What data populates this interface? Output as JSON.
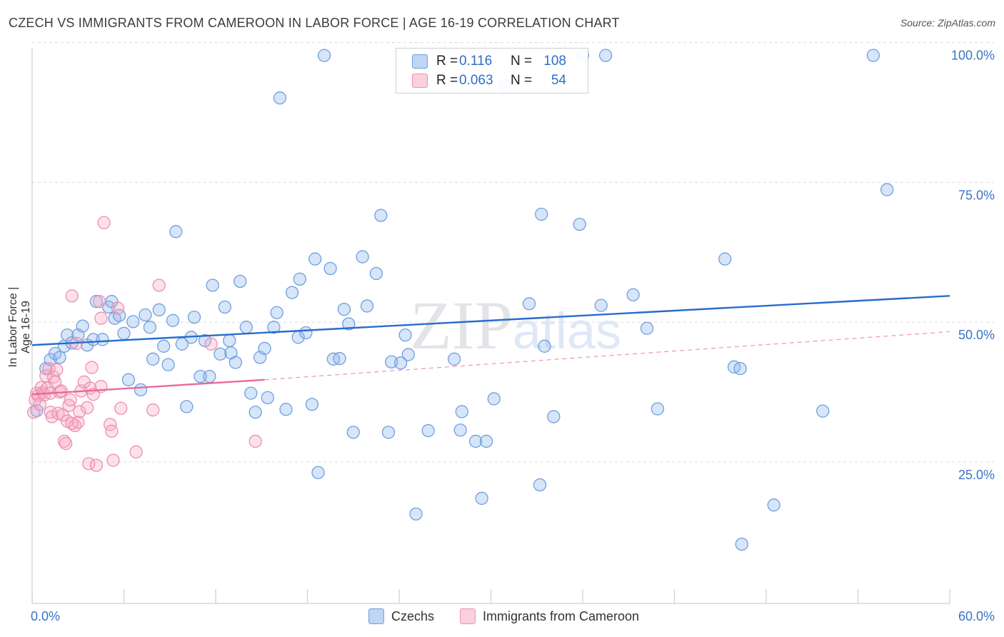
{
  "title": "CZECH VS IMMIGRANTS FROM CAMEROON IN LABOR FORCE | AGE 16-19 CORRELATION CHART",
  "source": "Source: ZipAtlas.com",
  "colors": {
    "blue": "#6f9fe0",
    "blue_fill": "rgba(140,180,235,0.35)",
    "blue_line": "#2a6ccc",
    "pink": "#ee8faf",
    "pink_fill": "rgba(245,170,195,0.35)",
    "pink_line": "#e8699a",
    "grid": "#dcdcdc",
    "axis_text": "#3a74c4"
  },
  "legend": {
    "rows": [
      {
        "swatch": "blue",
        "r_label": "R =",
        "r_value": "0.116",
        "n_label": "N =",
        "n_value": "108"
      },
      {
        "swatch": "pink",
        "r_label": "R =",
        "r_value": "0.063",
        "n_label": "N =",
        "n_value": "54"
      }
    ]
  },
  "bottom_legend": [
    "Czechs",
    "Immigrants from Cameroon"
  ],
  "watermark": "ZIPatlas",
  "chart_data": {
    "type": "scatter",
    "xlabel": "",
    "ylabel": "In Labor Force | Age 16-19",
    "xlim": [
      0,
      60
    ],
    "ylim": [
      2,
      102
    ],
    "x_tick_labels": {
      "left": "0.0%",
      "right": "60.0%"
    },
    "y_ticks": [
      {
        "value": 100,
        "label": "100.0%"
      },
      {
        "value": 75,
        "label": "75.0%"
      },
      {
        "value": 50,
        "label": "50.0%"
      },
      {
        "value": 25,
        "label": "25.0%"
      }
    ],
    "grid": true,
    "series": [
      {
        "name": "Czechs",
        "color_key": "blue",
        "trend": {
          "x0": 0,
          "y0": 48.2,
          "x1": 60,
          "y1": 57.0,
          "style": "solid"
        },
        "points": [
          [
            0.3,
            36.5
          ],
          [
            0.9,
            44.0
          ],
          [
            1.2,
            45.6
          ],
          [
            1.5,
            46.7
          ],
          [
            1.8,
            46.0
          ],
          [
            2.1,
            48.0
          ],
          [
            2.3,
            50.0
          ],
          [
            2.6,
            48.6
          ],
          [
            3.0,
            50.0
          ],
          [
            3.3,
            51.6
          ],
          [
            3.6,
            48.2
          ],
          [
            4.0,
            49.2
          ],
          [
            4.6,
            49.2
          ],
          [
            4.2,
            56.0
          ],
          [
            5.0,
            55.0
          ],
          [
            5.2,
            56.0
          ],
          [
            5.4,
            53.0
          ],
          [
            5.7,
            53.5
          ],
          [
            6.0,
            50.3
          ],
          [
            6.3,
            42.0
          ],
          [
            6.6,
            52.4
          ],
          [
            7.1,
            40.2
          ],
          [
            7.4,
            53.6
          ],
          [
            7.7,
            51.4
          ],
          [
            7.9,
            45.7
          ],
          [
            8.3,
            54.5
          ],
          [
            8.6,
            48.0
          ],
          [
            8.9,
            44.7
          ],
          [
            9.2,
            52.6
          ],
          [
            9.4,
            68.5
          ],
          [
            9.8,
            48.4
          ],
          [
            10.1,
            37.2
          ],
          [
            10.4,
            49.6
          ],
          [
            10.6,
            53.2
          ],
          [
            11.0,
            42.6
          ],
          [
            11.3,
            49.0
          ],
          [
            11.6,
            42.6
          ],
          [
            11.8,
            58.9
          ],
          [
            12.3,
            46.6
          ],
          [
            12.6,
            55.0
          ],
          [
            12.9,
            49.0
          ],
          [
            13.3,
            45.1
          ],
          [
            13.6,
            59.6
          ],
          [
            14.0,
            51.4
          ],
          [
            14.3,
            39.6
          ],
          [
            14.6,
            36.2
          ],
          [
            14.9,
            46.0
          ],
          [
            15.2,
            47.6
          ],
          [
            15.4,
            38.8
          ],
          [
            15.8,
            51.4
          ],
          [
            16.0,
            54.0
          ],
          [
            16.2,
            92.4
          ],
          [
            16.6,
            36.7
          ],
          [
            17.0,
            57.6
          ],
          [
            17.4,
            49.6
          ],
          [
            17.5,
            60.0
          ],
          [
            17.9,
            50.4
          ],
          [
            18.3,
            37.6
          ],
          [
            18.5,
            63.6
          ],
          [
            18.7,
            25.4
          ],
          [
            19.1,
            100.0
          ],
          [
            19.5,
            61.9
          ],
          [
            19.7,
            45.7
          ],
          [
            20.1,
            45.8
          ],
          [
            20.4,
            54.6
          ],
          [
            20.7,
            52.0
          ],
          [
            21.0,
            32.6
          ],
          [
            21.6,
            64.0
          ],
          [
            21.9,
            55.2
          ],
          [
            22.5,
            61.0
          ],
          [
            22.8,
            71.4
          ],
          [
            23.3,
            32.6
          ],
          [
            23.5,
            45.2
          ],
          [
            24.4,
            50.0
          ],
          [
            24.6,
            46.5
          ],
          [
            25.1,
            18.0
          ],
          [
            25.9,
            32.9
          ],
          [
            27.6,
            45.7
          ],
          [
            28.0,
            33.0
          ],
          [
            28.1,
            36.3
          ],
          [
            29.1,
            100.0
          ],
          [
            29.0,
            31.0
          ],
          [
            29.4,
            20.8
          ],
          [
            29.7,
            31.0
          ],
          [
            30.2,
            38.6
          ],
          [
            30.9,
            94.6
          ],
          [
            32.5,
            55.6
          ],
          [
            33.2,
            23.2
          ],
          [
            33.3,
            71.6
          ],
          [
            33.5,
            48.0
          ],
          [
            34.1,
            35.4
          ],
          [
            36.0,
            100.0
          ],
          [
            35.8,
            69.8
          ],
          [
            37.2,
            55.3
          ],
          [
            37.5,
            100.0
          ],
          [
            39.3,
            57.2
          ],
          [
            40.2,
            51.2
          ],
          [
            40.9,
            36.8
          ],
          [
            45.3,
            63.6
          ],
          [
            45.9,
            44.3
          ],
          [
            46.3,
            44.0
          ],
          [
            46.4,
            12.6
          ],
          [
            48.5,
            19.6
          ],
          [
            51.7,
            36.4
          ],
          [
            55.0,
            100.0
          ],
          [
            55.9,
            76.0
          ],
          [
            24.1,
            45.0
          ],
          [
            13.0,
            46.8
          ]
        ]
      },
      {
        "name": "Immigrants from Cameroon",
        "color_key": "pink",
        "trend": {
          "x0": 0,
          "y0": 39.4,
          "x1": 15.2,
          "y1": 42.0,
          "style": "solid",
          "dashed_to": {
            "x": 60,
            "y": 50.6
          }
        },
        "points": [
          [
            0.1,
            36.2
          ],
          [
            0.2,
            38.4
          ],
          [
            0.3,
            39.6
          ],
          [
            0.4,
            39.2
          ],
          [
            0.5,
            37.6
          ],
          [
            0.6,
            40.6
          ],
          [
            0.7,
            39.7
          ],
          [
            0.8,
            39.3
          ],
          [
            0.9,
            42.7
          ],
          [
            1.0,
            40.5
          ],
          [
            1.1,
            44.0
          ],
          [
            1.2,
            36.2
          ],
          [
            1.2,
            39.6
          ],
          [
            1.3,
            35.4
          ],
          [
            1.4,
            42.5
          ],
          [
            1.5,
            41.6
          ],
          [
            1.6,
            43.8
          ],
          [
            1.7,
            36.0
          ],
          [
            1.8,
            39.8
          ],
          [
            1.9,
            40.0
          ],
          [
            2.0,
            35.7
          ],
          [
            2.1,
            31.0
          ],
          [
            2.2,
            30.6
          ],
          [
            2.3,
            34.6
          ],
          [
            2.4,
            37.4
          ],
          [
            2.5,
            38.4
          ],
          [
            2.6,
            57.0
          ],
          [
            2.8,
            33.8
          ],
          [
            2.9,
            48.5
          ],
          [
            3.0,
            34.4
          ],
          [
            3.1,
            36.3
          ],
          [
            3.2,
            40.0
          ],
          [
            3.4,
            41.6
          ],
          [
            3.6,
            37.0
          ],
          [
            3.7,
            27.0
          ],
          [
            3.8,
            40.5
          ],
          [
            3.9,
            44.2
          ],
          [
            4.0,
            39.4
          ],
          [
            4.2,
            26.7
          ],
          [
            4.4,
            56.0
          ],
          [
            4.5,
            53.0
          ],
          [
            4.5,
            40.8
          ],
          [
            4.7,
            70.1
          ],
          [
            5.1,
            34.0
          ],
          [
            5.2,
            32.8
          ],
          [
            5.3,
            27.6
          ],
          [
            5.6,
            54.8
          ],
          [
            5.8,
            36.9
          ],
          [
            6.8,
            29.1
          ],
          [
            7.9,
            36.6
          ],
          [
            8.3,
            58.9
          ],
          [
            11.7,
            48.4
          ],
          [
            14.6,
            31.0
          ],
          [
            2.6,
            34.2
          ]
        ]
      }
    ]
  }
}
